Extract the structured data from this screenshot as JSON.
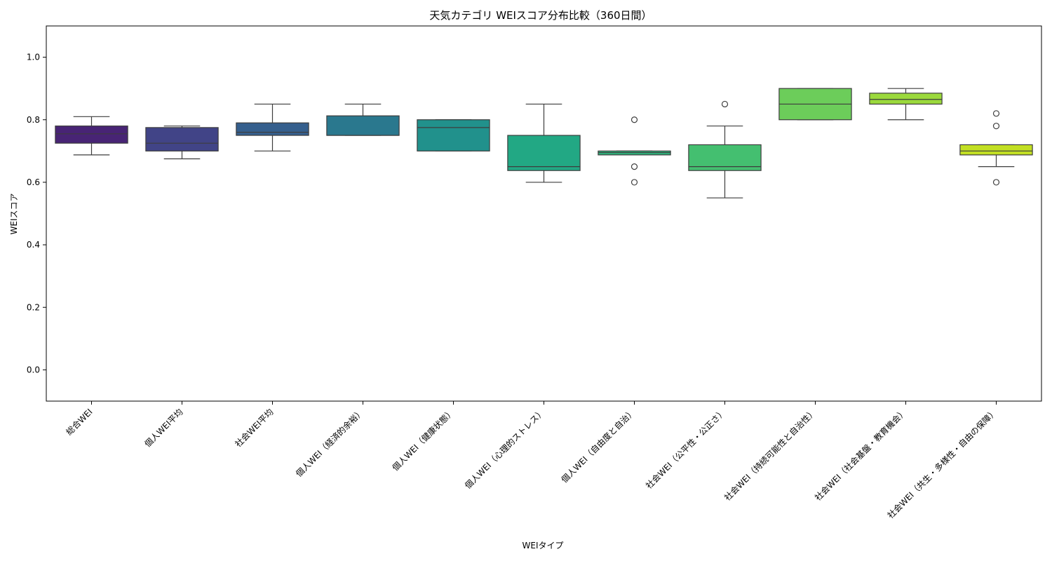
{
  "chart_data": {
    "type": "box",
    "title": "天気カテゴリ WEIスコア分布比較（360日間）",
    "xlabel": "WEIタイプ",
    "ylabel": "WEIスコア",
    "ylim": [
      -0.1,
      1.1
    ],
    "yticks": [
      0.0,
      0.2,
      0.4,
      0.6,
      0.8,
      1.0
    ],
    "ytick_labels": [
      "0.0",
      "0.2",
      "0.4",
      "0.6",
      "0.8",
      "1.0"
    ],
    "grid": false,
    "categories": [
      "総合WEI",
      "個人WEI平均",
      "社会WEI平均",
      "個人WEI（経済的余裕）",
      "個人WEI（健康状態）",
      "個人WEI（心理的ストレス）",
      "個人WEI（自由度と自治）",
      "社会WEI（公平性・公正さ）",
      "社会WEI（持続可能性と自治性）",
      "社会WEI（社会基盤・教育機会）",
      "社会WEI（共生・多様性・自由の保障）"
    ],
    "boxes": [
      {
        "whisker_low": 0.6875,
        "q1": 0.725,
        "median": 0.755,
        "q3": 0.78,
        "whisker_high": 0.81,
        "outliers": [],
        "color": "#482475"
      },
      {
        "whisker_low": 0.675,
        "q1": 0.7,
        "median": 0.725,
        "q3": 0.775,
        "whisker_high": 0.78,
        "outliers": [],
        "color": "#414487"
      },
      {
        "whisker_low": 0.7,
        "q1": 0.75,
        "median": 0.76,
        "q3": 0.79,
        "whisker_high": 0.85,
        "outliers": [],
        "color": "#355f8d"
      },
      {
        "whisker_low": 0.75,
        "q1": 0.75,
        "median": 0.75,
        "q3": 0.8125,
        "whisker_high": 0.85,
        "outliers": [],
        "color": "#2a788e"
      },
      {
        "whisker_low": 0.7,
        "q1": 0.7,
        "median": 0.775,
        "q3": 0.8,
        "whisker_high": 0.8,
        "outliers": [],
        "color": "#21918c"
      },
      {
        "whisker_low": 0.6,
        "q1": 0.6375,
        "median": 0.65,
        "q3": 0.75,
        "whisker_high": 0.85,
        "outliers": [],
        "color": "#22a884"
      },
      {
        "whisker_low": 0.6875,
        "q1": 0.6875,
        "median": 0.695,
        "q3": 0.7,
        "whisker_high": 0.7,
        "outliers": [
          0.8,
          0.65,
          0.6
        ],
        "color": "#2fb47c"
      },
      {
        "whisker_low": 0.55,
        "q1": 0.6375,
        "median": 0.65,
        "q3": 0.72,
        "whisker_high": 0.78,
        "outliers": [
          0.85
        ],
        "color": "#44bf70"
      },
      {
        "whisker_low": 0.8,
        "q1": 0.8,
        "median": 0.85,
        "q3": 0.9,
        "whisker_high": 0.9,
        "outliers": [],
        "color": "#6ccd5a"
      },
      {
        "whisker_low": 0.8,
        "q1": 0.85,
        "median": 0.865,
        "q3": 0.885,
        "whisker_high": 0.9,
        "outliers": [],
        "color": "#9bd93c"
      },
      {
        "whisker_low": 0.65,
        "q1": 0.6875,
        "median": 0.7,
        "q3": 0.72,
        "whisker_high": 0.72,
        "outliers": [
          0.82,
          0.78,
          0.6
        ],
        "color": "#c2df23"
      }
    ]
  }
}
